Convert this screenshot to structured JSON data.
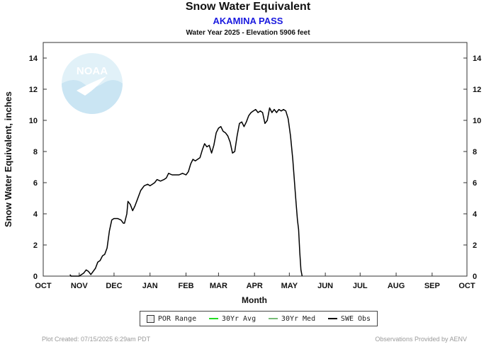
{
  "chart_data": {
    "type": "line",
    "title": "Snow Water Equivalent",
    "subtitle": "AKAMINA PASS",
    "subtitle2": "Water Year 2025 -  Elevation 5906 feet",
    "xlabel": "Month",
    "ylabel": "Snow Water Equivalent, inches",
    "categories": [
      "OCT",
      "NOV",
      "DEC",
      "JAN",
      "FEB",
      "MAR",
      "APR",
      "MAY",
      "JUN",
      "JUL",
      "AUG",
      "SEP",
      "OCT"
    ],
    "ylim": [
      0,
      15
    ],
    "yticks": [
      0,
      2,
      4,
      6,
      8,
      10,
      12,
      14
    ],
    "grid": false,
    "legend_position": "bottom",
    "series": [
      {
        "name": "SWE Obs",
        "color": "#000000",
        "x": [
          "2024-10-24",
          "2024-10-25",
          "2024-10-30",
          "2024-11-01",
          "2024-11-03",
          "2024-11-05",
          "2024-11-07",
          "2024-11-09",
          "2024-11-11",
          "2024-11-13",
          "2024-11-15",
          "2024-11-17",
          "2024-11-19",
          "2024-11-21",
          "2024-11-23",
          "2024-11-25",
          "2024-11-27",
          "2024-11-29",
          "2024-12-01",
          "2024-12-04",
          "2024-12-07",
          "2024-12-09",
          "2024-12-10",
          "2024-12-12",
          "2024-12-13",
          "2024-12-15",
          "2024-12-17",
          "2024-12-19",
          "2024-12-21",
          "2024-12-24",
          "2024-12-27",
          "2024-12-30",
          "2025-01-01",
          "2025-01-03",
          "2025-01-05",
          "2025-01-07",
          "2025-01-10",
          "2025-01-13",
          "2025-01-15",
          "2025-01-17",
          "2025-01-20",
          "2025-01-23",
          "2025-01-26",
          "2025-01-29",
          "2025-02-01",
          "2025-02-03",
          "2025-02-05",
          "2025-02-07",
          "2025-02-09",
          "2025-02-11",
          "2025-02-13",
          "2025-02-15",
          "2025-02-17",
          "2025-02-19",
          "2025-02-21",
          "2025-02-23",
          "2025-02-25",
          "2025-02-27",
          "2025-03-01",
          "2025-03-03",
          "2025-03-05",
          "2025-03-07",
          "2025-03-09",
          "2025-03-11",
          "2025-03-13",
          "2025-03-15",
          "2025-03-17",
          "2025-03-19",
          "2025-03-21",
          "2025-03-23",
          "2025-03-25",
          "2025-03-27",
          "2025-03-29",
          "2025-03-31",
          "2025-04-02",
          "2025-04-04",
          "2025-04-06",
          "2025-04-08",
          "2025-04-10",
          "2025-04-12",
          "2025-04-14",
          "2025-04-16",
          "2025-04-18",
          "2025-04-20",
          "2025-04-22",
          "2025-04-24",
          "2025-04-26",
          "2025-04-28",
          "2025-04-30",
          "2025-05-02",
          "2025-05-04",
          "2025-05-06",
          "2025-05-07",
          "2025-05-08",
          "2025-05-09",
          "2025-05-10",
          "2025-05-11",
          "2025-05-12"
        ],
        "y": [
          0.1,
          0,
          0,
          0,
          0.1,
          0.2,
          0.4,
          0.3,
          0.1,
          0.3,
          0.5,
          0.9,
          1.0,
          1.3,
          1.4,
          1.8,
          2.9,
          3.6,
          3.7,
          3.7,
          3.6,
          3.4,
          3.4,
          4.0,
          4.8,
          4.6,
          4.2,
          4.5,
          4.9,
          5.5,
          5.8,
          5.9,
          5.8,
          5.9,
          6.0,
          6.2,
          6.1,
          6.2,
          6.3,
          6.6,
          6.5,
          6.5,
          6.5,
          6.6,
          6.5,
          6.7,
          7.2,
          7.5,
          7.4,
          7.5,
          7.6,
          8.1,
          8.5,
          8.3,
          8.4,
          7.9,
          8.4,
          9.2,
          9.5,
          9.6,
          9.3,
          9.2,
          9.0,
          8.6,
          7.9,
          8.0,
          9.0,
          9.8,
          9.9,
          9.6,
          9.9,
          10.3,
          10.5,
          10.6,
          10.7,
          10.5,
          10.6,
          10.5,
          9.8,
          10.0,
          10.8,
          10.5,
          10.7,
          10.5,
          10.7,
          10.6,
          10.7,
          10.6,
          10.1,
          9.0,
          7.5,
          5.5,
          4.5,
          3.6,
          3.0,
          1.5,
          0.4,
          0
        ]
      }
    ],
    "legend": [
      {
        "label": "POR Range",
        "color": "#eeeeee",
        "symbol": "box"
      },
      {
        "label": "30Yr Avg",
        "color": "#22dd22",
        "symbol": "line"
      },
      {
        "label": "30Yr Med",
        "color": "#77bb77",
        "symbol": "line"
      },
      {
        "label": "SWE Obs",
        "color": "#000000",
        "symbol": "line"
      }
    ]
  },
  "footer": {
    "left": "Plot Created: 07/15/2025 6:29am PDT",
    "right": "Observations Provided by AENV"
  },
  "logo": {
    "text": "NOAA",
    "icon": "noaa-logo-icon",
    "color": "#c9e6f4"
  }
}
